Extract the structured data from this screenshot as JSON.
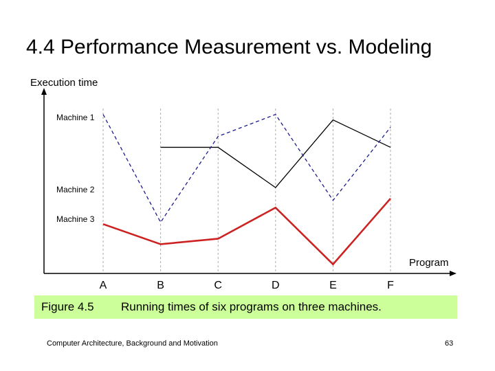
{
  "slide": {
    "title": "4.4  Performance Measurement vs. Modeling",
    "footer": "Computer Architecture, Background and Motivation",
    "page_number": "63"
  },
  "caption": {
    "figure_number": "Figure 4.5",
    "text": "Running times of six programs on three machines."
  },
  "chart_data": {
    "type": "line",
    "ylabel": "Execution time",
    "xlabel": "Program",
    "categories": [
      "A",
      "B",
      "C",
      "D",
      "E",
      "F"
    ],
    "ylim": [
      0,
      100
    ],
    "grid": "vertical dashed lines at each program",
    "series": [
      {
        "name": "Machine 1",
        "values": [
          null,
          69,
          69,
          47,
          84,
          69
        ],
        "color": "#000000",
        "style": "solid"
      },
      {
        "name": "Machine 2",
        "values": [
          87,
          28,
          75,
          87,
          40,
          80
        ],
        "color": "#1a1a8c",
        "style": "dashed"
      },
      {
        "name": "Machine 3",
        "values": [
          27,
          16,
          19,
          36,
          5,
          41
        ],
        "color": "#cc2222",
        "style": "solid-bold"
      }
    ]
  }
}
